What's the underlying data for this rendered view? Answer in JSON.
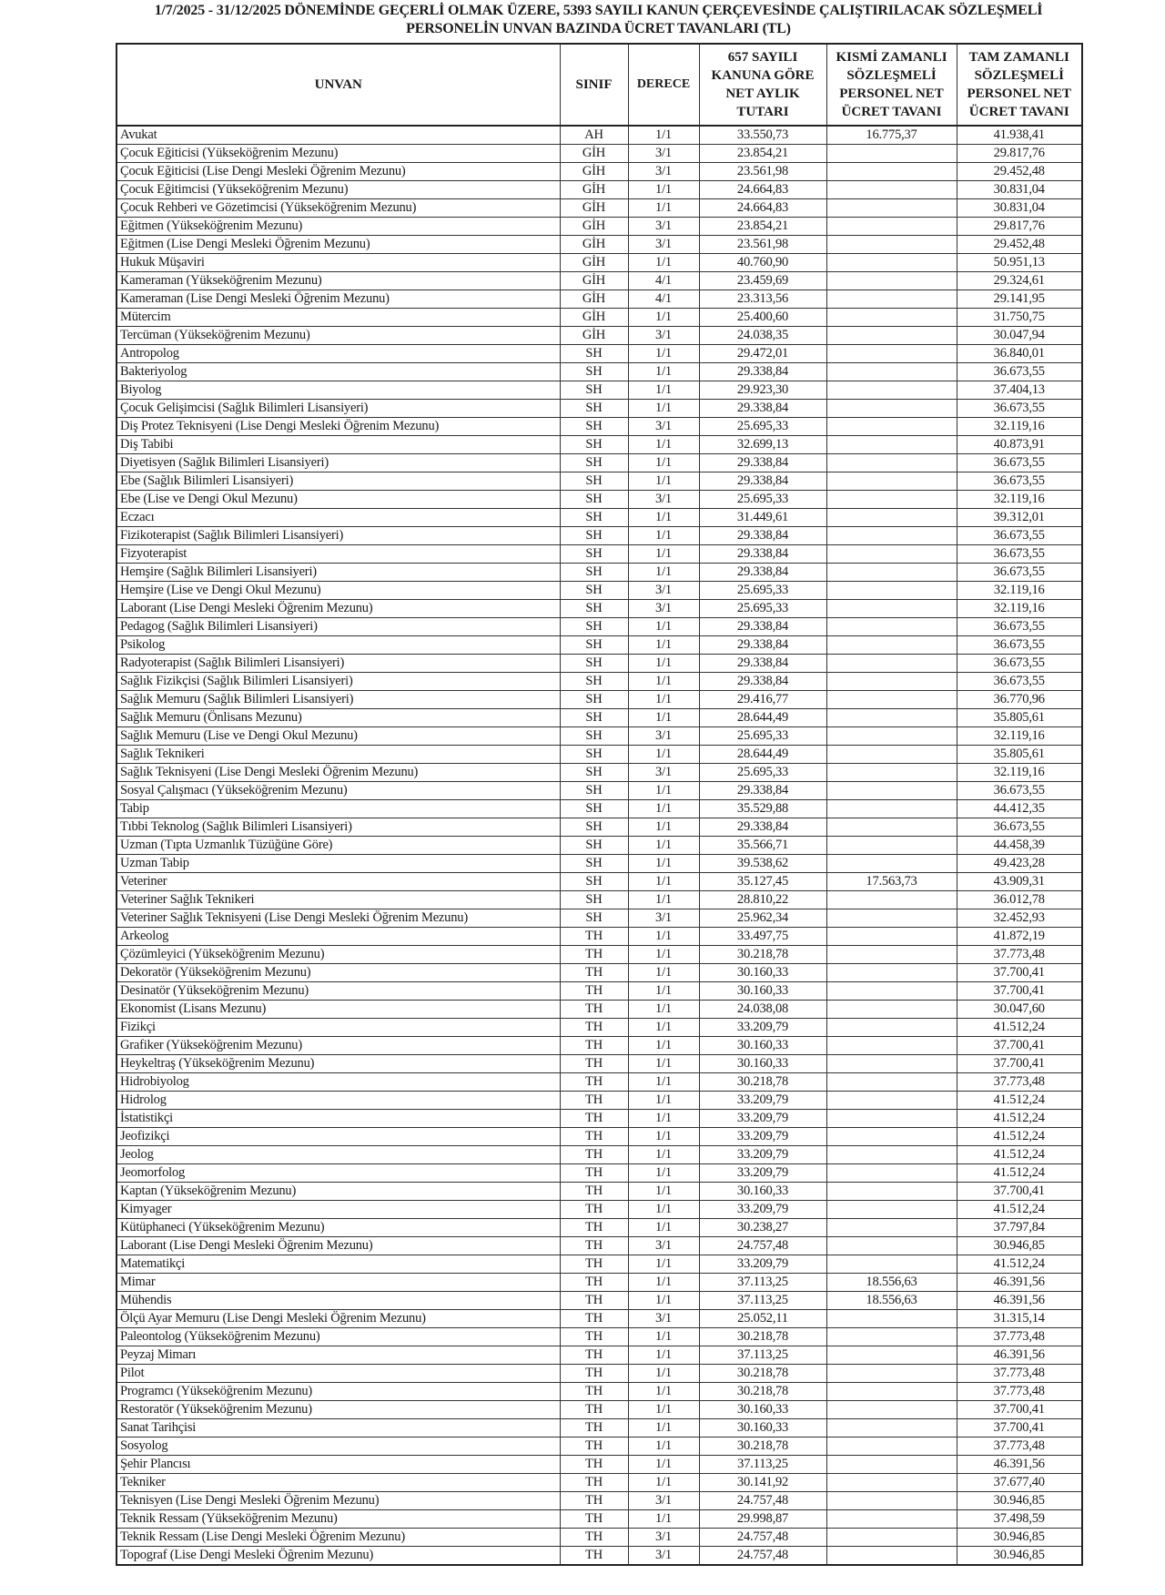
{
  "title": {
    "line1": "1/7/2025 - 31/12/2025 DÖNEMİNDE GEÇERLİ OLMAK ÜZERE, 5393 SAYILI KANUN ÇERÇEVESİNDE ÇALIŞTIRILACAK SÖZLEŞMELİ",
    "line2": "PERSONELİN UNVAN BAZINDA ÜCRET TAVANLARI (TL)"
  },
  "headers": {
    "unvan": "UNVAN",
    "sinif": "SINIF",
    "derece": "DERECE",
    "net": "657 SAYILI KANUNA GÖRE NET AYLIK TUTARI",
    "kismi": "KISMİ ZAMANLI SÖZLEŞMELİ PERSONEL NET ÜCRET TAVANI",
    "tam": "TAM ZAMANLI SÖZLEŞMELİ PERSONEL NET ÜCRET TAVANI"
  },
  "rows": [
    [
      "Avukat",
      "AH",
      "1/1",
      "33.550,73",
      "16.775,37",
      "41.938,41"
    ],
    [
      "Çocuk Eğiticisi (Yükseköğrenim Mezunu)",
      "GİH",
      "3/1",
      "23.854,21",
      "",
      "29.817,76"
    ],
    [
      "Çocuk Eğiticisi (Lise Dengi Mesleki Öğrenim Mezunu)",
      "GİH",
      "3/1",
      "23.561,98",
      "",
      "29.452,48"
    ],
    [
      "Çocuk Eğitimcisi (Yükseköğrenim Mezunu)",
      "GİH",
      "1/1",
      "24.664,83",
      "",
      "30.831,04"
    ],
    [
      "Çocuk Rehberi ve Gözetimcisi (Yükseköğrenim Mezunu)",
      "GİH",
      "1/1",
      "24.664,83",
      "",
      "30.831,04"
    ],
    [
      "Eğitmen (Yükseköğrenim Mezunu)",
      "GİH",
      "3/1",
      "23.854,21",
      "",
      "29.817,76"
    ],
    [
      "Eğitmen (Lise Dengi Mesleki Öğrenim Mezunu)",
      "GİH",
      "3/1",
      "23.561,98",
      "",
      "29.452,48"
    ],
    [
      "Hukuk Müşaviri",
      "GİH",
      "1/1",
      "40.760,90",
      "",
      "50.951,13"
    ],
    [
      "Kameraman (Yükseköğrenim Mezunu)",
      "GİH",
      "4/1",
      "23.459,69",
      "",
      "29.324,61"
    ],
    [
      "Kameraman (Lise Dengi Mesleki Öğrenim Mezunu)",
      "GİH",
      "4/1",
      "23.313,56",
      "",
      "29.141,95"
    ],
    [
      "Mütercim",
      "GİH",
      "1/1",
      "25.400,60",
      "",
      "31.750,75"
    ],
    [
      "Tercüman (Yükseköğrenim Mezunu)",
      "GİH",
      "3/1",
      "24.038,35",
      "",
      "30.047,94"
    ],
    [
      "Antropolog",
      "SH",
      "1/1",
      "29.472,01",
      "",
      "36.840,01"
    ],
    [
      "Bakteriyolog",
      "SH",
      "1/1",
      "29.338,84",
      "",
      "36.673,55"
    ],
    [
      "Biyolog",
      "SH",
      "1/1",
      "29.923,30",
      "",
      "37.404,13"
    ],
    [
      "Çocuk Gelişimcisi (Sağlık Bilimleri Lisansiyeri)",
      "SH",
      "1/1",
      "29.338,84",
      "",
      "36.673,55"
    ],
    [
      "Diş Protez Teknisyeni (Lise Dengi Mesleki Öğrenim Mezunu)",
      "SH",
      "3/1",
      "25.695,33",
      "",
      "32.119,16"
    ],
    [
      "Diş Tabibi",
      "SH",
      "1/1",
      "32.699,13",
      "",
      "40.873,91"
    ],
    [
      "Diyetisyen (Sağlık Bilimleri Lisansiyeri)",
      "SH",
      "1/1",
      "29.338,84",
      "",
      "36.673,55"
    ],
    [
      "Ebe (Sağlık Bilimleri Lisansiyeri)",
      "SH",
      "1/1",
      "29.338,84",
      "",
      "36.673,55"
    ],
    [
      "Ebe (Lise ve Dengi Okul Mezunu)",
      "SH",
      "3/1",
      "25.695,33",
      "",
      "32.119,16"
    ],
    [
      "Eczacı",
      "SH",
      "1/1",
      "31.449,61",
      "",
      "39.312,01"
    ],
    [
      "Fizikoterapist (Sağlık Bilimleri Lisansiyeri)",
      "SH",
      "1/1",
      "29.338,84",
      "",
      "36.673,55"
    ],
    [
      "Fizyoterapist",
      "SH",
      "1/1",
      "29.338,84",
      "",
      "36.673,55"
    ],
    [
      "Hemşire (Sağlık Bilimleri Lisansiyeri)",
      "SH",
      "1/1",
      "29.338,84",
      "",
      "36.673,55"
    ],
    [
      "Hemşire (Lise ve Dengi Okul Mezunu)",
      "SH",
      "3/1",
      "25.695,33",
      "",
      "32.119,16"
    ],
    [
      "Laborant (Lise Dengi Mesleki Öğrenim Mezunu)",
      "SH",
      "3/1",
      "25.695,33",
      "",
      "32.119,16"
    ],
    [
      "Pedagog (Sağlık Bilimleri Lisansiyeri)",
      "SH",
      "1/1",
      "29.338,84",
      "",
      "36.673,55"
    ],
    [
      "Psikolog",
      "SH",
      "1/1",
      "29.338,84",
      "",
      "36.673,55"
    ],
    [
      "Radyoterapist (Sağlık Bilimleri Lisansiyeri)",
      "SH",
      "1/1",
      "29.338,84",
      "",
      "36.673,55"
    ],
    [
      "Sağlık Fizikçisi (Sağlık Bilimleri Lisansiyeri)",
      "SH",
      "1/1",
      "29.338,84",
      "",
      "36.673,55"
    ],
    [
      "Sağlık Memuru (Sağlık Bilimleri Lisansiyeri)",
      "SH",
      "1/1",
      "29.416,77",
      "",
      "36.770,96"
    ],
    [
      "Sağlık Memuru (Önlisans Mezunu)",
      "SH",
      "1/1",
      "28.644,49",
      "",
      "35.805,61"
    ],
    [
      "Sağlık Memuru (Lise ve Dengi Okul Mezunu)",
      "SH",
      "3/1",
      "25.695,33",
      "",
      "32.119,16"
    ],
    [
      "Sağlık Teknikeri",
      "SH",
      "1/1",
      "28.644,49",
      "",
      "35.805,61"
    ],
    [
      "Sağlık Teknisyeni (Lise Dengi Mesleki Öğrenim Mezunu)",
      "SH",
      "3/1",
      "25.695,33",
      "",
      "32.119,16"
    ],
    [
      "Sosyal Çalışmacı (Yükseköğrenim Mezunu)",
      "SH",
      "1/1",
      "29.338,84",
      "",
      "36.673,55"
    ],
    [
      "Tabip",
      "SH",
      "1/1",
      "35.529,88",
      "",
      "44.412,35"
    ],
    [
      "Tıbbi Teknolog (Sağlık Bilimleri Lisansiyeri)",
      "SH",
      "1/1",
      "29.338,84",
      "",
      "36.673,55"
    ],
    [
      "Uzman (Tıpta Uzmanlık Tüzüğüne Göre)",
      "SH",
      "1/1",
      "35.566,71",
      "",
      "44.458,39"
    ],
    [
      "Uzman Tabip",
      "SH",
      "1/1",
      "39.538,62",
      "",
      "49.423,28"
    ],
    [
      "Veteriner",
      "SH",
      "1/1",
      "35.127,45",
      "17.563,73",
      "43.909,31"
    ],
    [
      "Veteriner Sağlık Teknikeri",
      "SH",
      "1/1",
      "28.810,22",
      "",
      "36.012,78"
    ],
    [
      "Veteriner Sağlık Teknisyeni (Lise Dengi Mesleki Öğrenim Mezunu)",
      "SH",
      "3/1",
      "25.962,34",
      "",
      "32.452,93"
    ],
    [
      "Arkeolog",
      "TH",
      "1/1",
      "33.497,75",
      "",
      "41.872,19"
    ],
    [
      "Çözümleyici (Yükseköğrenim Mezunu)",
      "TH",
      "1/1",
      "30.218,78",
      "",
      "37.773,48"
    ],
    [
      "Dekoratör (Yükseköğrenim Mezunu)",
      "TH",
      "1/1",
      "30.160,33",
      "",
      "37.700,41"
    ],
    [
      "Desinatör (Yükseköğrenim Mezunu)",
      "TH",
      "1/1",
      "30.160,33",
      "",
      "37.700,41"
    ],
    [
      "Ekonomist (Lisans Mezunu)",
      "TH",
      "1/1",
      "24.038,08",
      "",
      "30.047,60"
    ],
    [
      "Fizikçi",
      "TH",
      "1/1",
      "33.209,79",
      "",
      "41.512,24"
    ],
    [
      "Grafiker (Yükseköğrenim Mezunu)",
      "TH",
      "1/1",
      "30.160,33",
      "",
      "37.700,41"
    ],
    [
      "Heykeltraş (Yükseköğrenim Mezunu)",
      "TH",
      "1/1",
      "30.160,33",
      "",
      "37.700,41"
    ],
    [
      "Hidrobiyolog",
      "TH",
      "1/1",
      "30.218,78",
      "",
      "37.773,48"
    ],
    [
      "Hidrolog",
      "TH",
      "1/1",
      "33.209,79",
      "",
      "41.512,24"
    ],
    [
      "İstatistikçi",
      "TH",
      "1/1",
      "33.209,79",
      "",
      "41.512,24"
    ],
    [
      "Jeofizikçi",
      "TH",
      "1/1",
      "33.209,79",
      "",
      "41.512,24"
    ],
    [
      "Jeolog",
      "TH",
      "1/1",
      "33.209,79",
      "",
      "41.512,24"
    ],
    [
      "Jeomorfolog",
      "TH",
      "1/1",
      "33.209,79",
      "",
      "41.512,24"
    ],
    [
      "Kaptan (Yükseköğrenim Mezunu)",
      "TH",
      "1/1",
      "30.160,33",
      "",
      "37.700,41"
    ],
    [
      "Kimyager",
      "TH",
      "1/1",
      "33.209,79",
      "",
      "41.512,24"
    ],
    [
      "Kütüphaneci (Yükseköğrenim Mezunu)",
      "TH",
      "1/1",
      "30.238,27",
      "",
      "37.797,84"
    ],
    [
      "Laborant (Lise Dengi Mesleki Öğrenim Mezunu)",
      "TH",
      "3/1",
      "24.757,48",
      "",
      "30.946,85"
    ],
    [
      "Matematikçi",
      "TH",
      "1/1",
      "33.209,79",
      "",
      "41.512,24"
    ],
    [
      "Mimar",
      "TH",
      "1/1",
      "37.113,25",
      "18.556,63",
      "46.391,56"
    ],
    [
      "Mühendis",
      "TH",
      "1/1",
      "37.113,25",
      "18.556,63",
      "46.391,56"
    ],
    [
      "Ölçü Ayar Memuru (Lise Dengi Mesleki Öğrenim Mezunu)",
      "TH",
      "3/1",
      "25.052,11",
      "",
      "31.315,14"
    ],
    [
      "Paleontolog (Yükseköğrenim Mezunu)",
      "TH",
      "1/1",
      "30.218,78",
      "",
      "37.773,48"
    ],
    [
      "Peyzaj Mimarı",
      "TH",
      "1/1",
      "37.113,25",
      "",
      "46.391,56"
    ],
    [
      "Pilot",
      "TH",
      "1/1",
      "30.218,78",
      "",
      "37.773,48"
    ],
    [
      "Programcı (Yükseköğrenim Mezunu)",
      "TH",
      "1/1",
      "30.218,78",
      "",
      "37.773,48"
    ],
    [
      "Restoratör (Yükseköğrenim Mezunu)",
      "TH",
      "1/1",
      "30.160,33",
      "",
      "37.700,41"
    ],
    [
      "Sanat Tarihçisi",
      "TH",
      "1/1",
      "30.160,33",
      "",
      "37.700,41"
    ],
    [
      "Sosyolog",
      "TH",
      "1/1",
      "30.218,78",
      "",
      "37.773,48"
    ],
    [
      "Şehir Plancısı",
      "TH",
      "1/1",
      "37.113,25",
      "",
      "46.391,56"
    ],
    [
      "Tekniker",
      "TH",
      "1/1",
      "30.141,92",
      "",
      "37.677,40"
    ],
    [
      "Teknisyen (Lise Dengi Mesleki Öğrenim Mezunu)",
      "TH",
      "3/1",
      "24.757,48",
      "",
      "30.946,85"
    ],
    [
      "Teknik Ressam (Yükseköğrenim Mezunu)",
      "TH",
      "1/1",
      "29.998,87",
      "",
      "37.498,59"
    ],
    [
      "Teknik Ressam (Lise Dengi Mesleki Öğrenim Mezunu)",
      "TH",
      "3/1",
      "24.757,48",
      "",
      "30.946,85"
    ],
    [
      "Topograf (Lise Dengi Mesleki Öğrenim Mezunu)",
      "TH",
      "3/1",
      "24.757,48",
      "",
      "30.946,85"
    ]
  ]
}
